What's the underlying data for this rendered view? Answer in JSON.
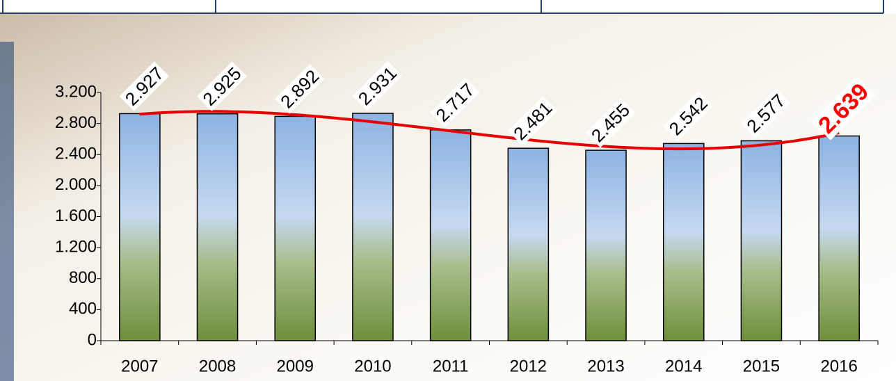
{
  "chart_data": {
    "type": "bar",
    "categories": [
      "2007",
      "2008",
      "2009",
      "2010",
      "2011",
      "2012",
      "2013",
      "2014",
      "2015",
      "2016"
    ],
    "values": [
      2927,
      2925,
      2892,
      2931,
      2717,
      2481,
      2455,
      2542,
      2577,
      2639
    ],
    "value_labels": [
      "2.927",
      "2.925",
      "2.892",
      "2.931",
      "2.717",
      "2.481",
      "2.455",
      "2.542",
      "2.577",
      "2.639"
    ],
    "ylim": [
      0,
      3200
    ],
    "yticks": [
      {
        "value": 0,
        "label": "0"
      },
      {
        "value": 400,
        "label": "400"
      },
      {
        "value": 800,
        "label": "800"
      },
      {
        "value": 1200,
        "label": "1.200"
      },
      {
        "value": 1600,
        "label": "1.600"
      },
      {
        "value": 2000,
        "label": "2.000"
      },
      {
        "value": 2400,
        "label": "2.400"
      },
      {
        "value": 2800,
        "label": "2.800"
      },
      {
        "value": 3200,
        "label": "3.200"
      }
    ],
    "trendline": true,
    "trend_color": "#e60000",
    "highlight_color": "#ff0000"
  }
}
